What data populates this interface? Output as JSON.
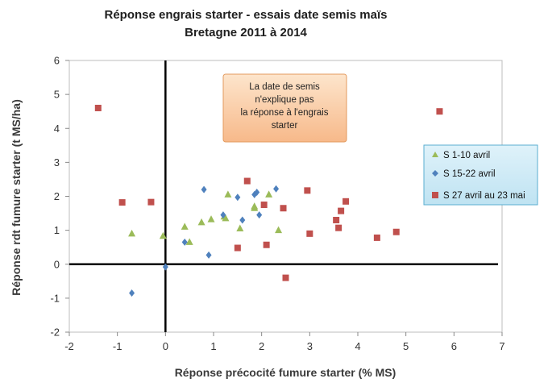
{
  "chart_data": {
    "type": "scatter",
    "title": "Réponse engrais starter - essais date semis maïs",
    "subtitle": "Bretagne 2011 à 2014",
    "xlabel": "Réponse précocité fumure starter (% MS)",
    "ylabel": "Réponse rdt fumure starter (t MS/ha)",
    "xlim": [
      -2,
      7
    ],
    "ylim": [
      -2,
      6
    ],
    "x_ticks": [
      -2,
      -1,
      0,
      1,
      2,
      3,
      4,
      5,
      6,
      7
    ],
    "y_ticks": [
      -2,
      -1,
      0,
      1,
      2,
      3,
      4,
      5,
      6
    ],
    "grid": false,
    "legend_position": "right",
    "annotation": [
      "La date de semis",
      "n'explique pas",
      "la réponse à l'engrais",
      "starter"
    ],
    "series": [
      {
        "name": "S 1-10 avril",
        "marker": "triangle",
        "color": "#9bbb59",
        "points": [
          [
            -0.7,
            0.9
          ],
          [
            -0.05,
            0.83
          ],
          [
            0.4,
            1.1
          ],
          [
            0.5,
            0.65
          ],
          [
            0.75,
            1.23
          ],
          [
            0.95,
            1.32
          ],
          [
            1.25,
            1.35
          ],
          [
            1.3,
            2.05
          ],
          [
            1.55,
            1.05
          ],
          [
            1.85,
            1.65
          ],
          [
            2.15,
            2.05
          ],
          [
            2.35,
            1.0
          ],
          [
            1.85,
            1.7
          ],
          [
            1.22,
            1.4
          ]
        ]
      },
      {
        "name": "S 15-22 avril",
        "marker": "diamond",
        "color": "#4f81bd",
        "points": [
          [
            -0.7,
            -0.85
          ],
          [
            0.0,
            -0.08
          ],
          [
            0.4,
            0.65
          ],
          [
            0.8,
            2.2
          ],
          [
            0.9,
            0.27
          ],
          [
            1.2,
            1.45
          ],
          [
            1.5,
            1.97
          ],
          [
            1.6,
            1.3
          ],
          [
            1.85,
            2.05
          ],
          [
            1.9,
            2.12
          ],
          [
            1.95,
            1.45
          ],
          [
            2.3,
            2.22
          ]
        ]
      },
      {
        "name": "S 27 avril au 23 mai",
        "marker": "square",
        "color": "#c0504d",
        "points": [
          [
            -1.4,
            4.6
          ],
          [
            -0.9,
            1.82
          ],
          [
            -0.3,
            1.83
          ],
          [
            1.5,
            0.48
          ],
          [
            1.7,
            2.45
          ],
          [
            2.05,
            1.75
          ],
          [
            2.1,
            0.57
          ],
          [
            2.45,
            1.65
          ],
          [
            2.5,
            -0.4
          ],
          [
            2.95,
            2.17
          ],
          [
            3.0,
            0.9
          ],
          [
            3.55,
            1.3
          ],
          [
            3.6,
            1.07
          ],
          [
            3.65,
            1.57
          ],
          [
            3.75,
            1.85
          ],
          [
            4.4,
            0.78
          ],
          [
            4.8,
            0.95
          ],
          [
            5.7,
            4.5
          ]
        ]
      }
    ]
  }
}
